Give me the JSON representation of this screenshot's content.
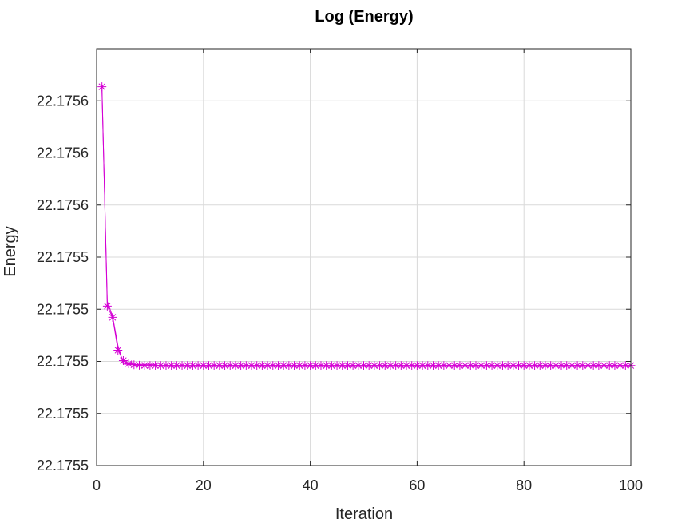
{
  "chart_data": {
    "type": "line",
    "title": "Log (Energy)",
    "xlabel": "Iteration",
    "ylabel": "Energy",
    "xlim": [
      0,
      100
    ],
    "ylim": [
      22.17547,
      22.17563
    ],
    "x_ticks": [
      0,
      20,
      40,
      60,
      80,
      100
    ],
    "x_tick_labels": [
      "0",
      "20",
      "40",
      "60",
      "80",
      "100"
    ],
    "y_ticks": [
      22.17547,
      22.17549,
      22.17551,
      22.17553,
      22.17555,
      22.17557,
      22.17559,
      22.17561
    ],
    "y_tick_labels": [
      "22.1755",
      "22.1755",
      "22.1755",
      "22.1755",
      "22.1755",
      "22.1756",
      "22.1756",
      "22.1756"
    ],
    "grid": true,
    "colors": {
      "series": "#d400d4",
      "grid": "#d9d9d9",
      "axis": "#262626"
    },
    "series": [
      {
        "marker": "asterisk",
        "x": [
          1,
          2,
          3,
          4,
          5,
          6,
          7,
          8,
          9,
          10,
          11,
          12,
          13,
          14,
          15,
          16,
          17,
          18,
          19,
          20,
          21,
          22,
          23,
          24,
          25,
          26,
          27,
          28,
          29,
          30,
          31,
          32,
          33,
          34,
          35,
          36,
          37,
          38,
          39,
          40,
          41,
          42,
          43,
          44,
          45,
          46,
          47,
          48,
          49,
          50,
          51,
          52,
          53,
          54,
          55,
          56,
          57,
          58,
          59,
          60,
          61,
          62,
          63,
          64,
          65,
          66,
          67,
          68,
          69,
          70,
          71,
          72,
          73,
          74,
          75,
          76,
          77,
          78,
          79,
          80,
          81,
          82,
          83,
          84,
          85,
          86,
          87,
          88,
          89,
          90,
          91,
          92,
          93,
          94,
          95,
          96,
          97,
          98,
          99,
          100
        ],
        "y": [
          22.1756154,
          22.1755312,
          22.1755269,
          22.1755143,
          22.1755103,
          22.1755091,
          22.1755087,
          22.1755085,
          22.1755084,
          22.1755084,
          22.1755084,
          22.1755084,
          22.1755084,
          22.1755084,
          22.1755084,
          22.1755084,
          22.1755084,
          22.1755084,
          22.1755084,
          22.1755084,
          22.1755084,
          22.1755084,
          22.1755084,
          22.1755084,
          22.1755084,
          22.1755084,
          22.1755084,
          22.1755084,
          22.1755084,
          22.1755084,
          22.1755084,
          22.1755084,
          22.1755084,
          22.1755084,
          22.1755084,
          22.1755084,
          22.1755084,
          22.1755084,
          22.1755084,
          22.1755084,
          22.1755084,
          22.1755084,
          22.1755084,
          22.1755084,
          22.1755084,
          22.1755084,
          22.1755084,
          22.1755084,
          22.1755084,
          22.1755084,
          22.1755084,
          22.1755084,
          22.1755084,
          22.1755084,
          22.1755084,
          22.1755084,
          22.1755084,
          22.1755084,
          22.1755084,
          22.1755084,
          22.1755084,
          22.1755084,
          22.1755084,
          22.1755084,
          22.1755084,
          22.1755084,
          22.1755084,
          22.1755084,
          22.1755084,
          22.1755084,
          22.1755084,
          22.1755084,
          22.1755084,
          22.1755084,
          22.1755084,
          22.1755084,
          22.1755084,
          22.1755084,
          22.1755084,
          22.1755084,
          22.1755084,
          22.1755084,
          22.1755084,
          22.1755084,
          22.1755084,
          22.1755084,
          22.1755084,
          22.1755084,
          22.1755084,
          22.1755084,
          22.1755084,
          22.1755084,
          22.1755084,
          22.1755084,
          22.1755084,
          22.1755084,
          22.1755084,
          22.1755084,
          22.1755084,
          22.1755084
        ]
      },
      {
        "marker": "none",
        "x": [
          1,
          2,
          3,
          4,
          5,
          6,
          8,
          10,
          11,
          12,
          13,
          20,
          40,
          60,
          80,
          100
        ],
        "y": [
          22.175614,
          22.175533,
          22.1755272,
          22.175516,
          22.175509,
          22.1755088,
          22.1755088,
          22.1755088,
          22.1755088,
          22.1755081,
          22.175508,
          22.175508,
          22.175508,
          22.175508,
          22.175508,
          22.175508
        ]
      }
    ]
  }
}
